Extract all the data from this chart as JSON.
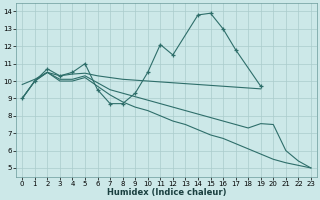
{
  "bg_color": "#cce8e8",
  "grid_color": "#aacccc",
  "line_color": "#2e6e6a",
  "xlabel": "Humidex (Indice chaleur)",
  "xlim": [
    -0.5,
    23.5
  ],
  "ylim": [
    4.5,
    14.5
  ],
  "yticks": [
    5,
    6,
    7,
    8,
    9,
    10,
    11,
    12,
    13,
    14
  ],
  "xticks": [
    0,
    1,
    2,
    3,
    4,
    5,
    6,
    7,
    8,
    9,
    10,
    11,
    12,
    13,
    14,
    15,
    16,
    17,
    18,
    19,
    20,
    21,
    22,
    23
  ],
  "series": [
    {
      "x": [
        0,
        1,
        2,
        3,
        4,
        5,
        6,
        7,
        8,
        9,
        10,
        11,
        12,
        14,
        15,
        16,
        17,
        19
      ],
      "y": [
        9.0,
        10.0,
        10.7,
        10.3,
        10.5,
        11.0,
        9.5,
        8.7,
        8.7,
        9.3,
        10.5,
        12.1,
        11.5,
        13.8,
        13.9,
        13.0,
        11.8,
        9.7
      ],
      "marker": "+"
    },
    {
      "x": [
        0,
        1,
        2,
        3,
        4,
        5,
        6,
        7,
        8,
        9,
        10,
        11,
        12,
        13,
        14,
        15,
        16,
        17,
        18,
        19
      ],
      "y": [
        9.8,
        10.1,
        10.5,
        10.3,
        10.4,
        10.45,
        10.3,
        10.2,
        10.1,
        10.05,
        10.0,
        9.95,
        9.9,
        9.85,
        9.8,
        9.75,
        9.7,
        9.65,
        9.6,
        9.55
      ],
      "marker": null
    },
    {
      "x": [
        0,
        1,
        2,
        3,
        4,
        5,
        6,
        7,
        8,
        9,
        10,
        11,
        12,
        13,
        14,
        15,
        16,
        17,
        18,
        19,
        20,
        21,
        22,
        23
      ],
      "y": [
        9.0,
        10.0,
        10.5,
        10.1,
        10.1,
        10.3,
        9.9,
        9.5,
        9.3,
        9.1,
        8.9,
        8.7,
        8.5,
        8.3,
        8.1,
        7.9,
        7.7,
        7.5,
        7.3,
        7.55,
        7.5,
        6.0,
        5.4,
        5.0
      ],
      "marker": null
    },
    {
      "x": [
        0,
        1,
        2,
        3,
        4,
        5,
        6,
        7,
        8,
        9,
        10,
        11,
        12,
        13,
        14,
        15,
        16,
        17,
        18,
        19,
        20,
        21,
        22,
        23
      ],
      "y": [
        9.0,
        10.0,
        10.5,
        10.0,
        10.0,
        10.2,
        9.7,
        9.2,
        8.8,
        8.5,
        8.3,
        8.0,
        7.7,
        7.5,
        7.2,
        6.9,
        6.7,
        6.4,
        6.1,
        5.8,
        5.5,
        5.3,
        5.15,
        5.0
      ],
      "marker": null
    }
  ],
  "xlabel_fontsize": 6,
  "tick_fontsize": 5
}
